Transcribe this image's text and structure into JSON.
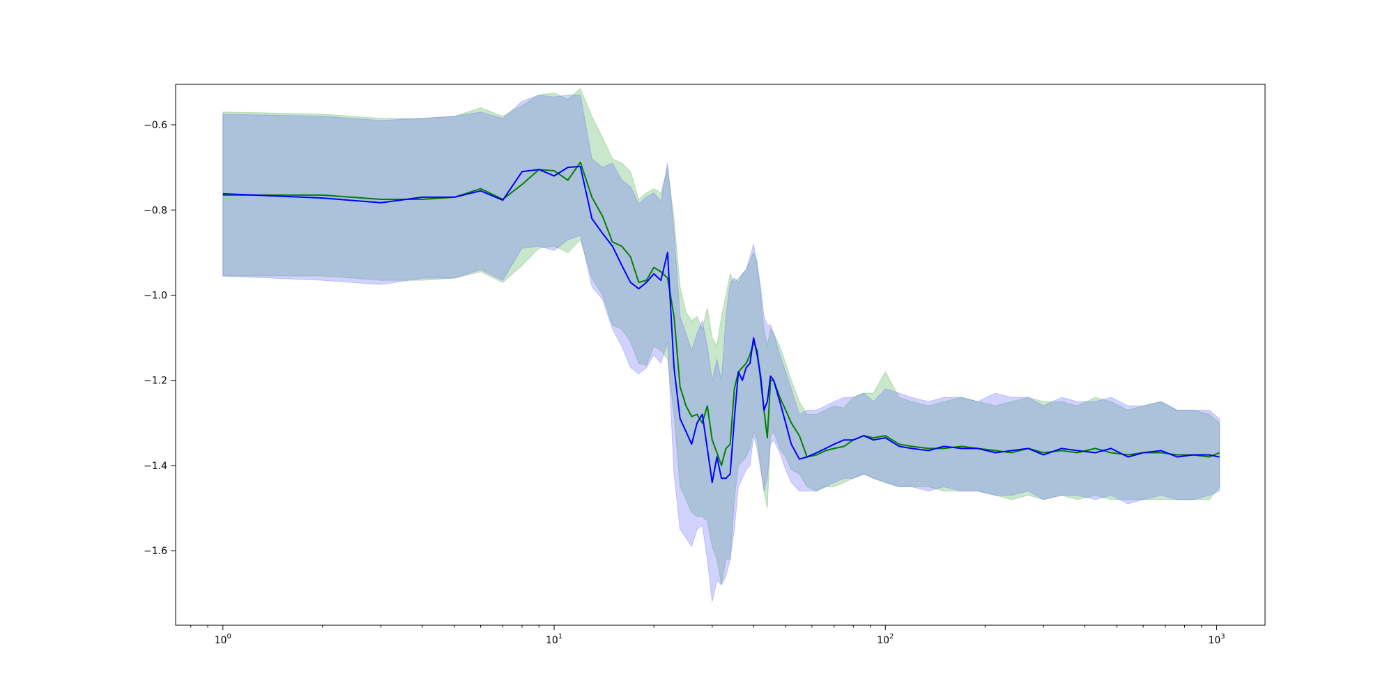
{
  "chart_data": {
    "type": "line",
    "title": "",
    "xlabel": "",
    "ylabel": "",
    "x_scale": "log",
    "xlim": [
      0.72,
      1400
    ],
    "ylim": [
      -1.775,
      -0.505
    ],
    "grid": false,
    "legend": "none",
    "x_ticks": [
      {
        "value": 1,
        "base": "10",
        "exp": "0"
      },
      {
        "value": 10,
        "base": "10",
        "exp": "1"
      },
      {
        "value": 100,
        "base": "10",
        "exp": "2"
      },
      {
        "value": 1000,
        "base": "10",
        "exp": "3"
      }
    ],
    "y_ticks": [
      {
        "value": -0.6,
        "label": "−0.6"
      },
      {
        "value": -0.8,
        "label": "−0.8"
      },
      {
        "value": -1.0,
        "label": "−1.0"
      },
      {
        "value": -1.2,
        "label": "−1.2"
      },
      {
        "value": -1.4,
        "label": "−1.4"
      },
      {
        "value": -1.6,
        "label": "−1.6"
      }
    ],
    "series": [
      {
        "color": "#008000",
        "band_color": "#4caf50",
        "x": [
          1,
          2,
          3,
          4,
          5,
          6,
          7,
          8,
          9,
          10,
          11,
          12,
          13,
          14,
          15,
          16,
          17,
          18,
          19,
          20,
          21,
          22,
          23,
          24,
          25,
          26,
          27,
          28,
          29,
          30,
          31,
          32,
          33,
          34,
          35,
          36,
          37,
          38,
          39,
          40,
          41,
          42,
          43,
          44,
          45,
          46,
          48,
          50,
          52,
          55,
          58,
          62,
          66,
          70,
          75,
          80,
          86,
          92,
          100,
          110,
          120,
          135,
          150,
          170,
          190,
          215,
          240,
          270,
          300,
          340,
          380,
          430,
          480,
          540,
          600,
          680,
          760,
          850,
          950,
          1020
        ],
        "y": [
          -0.765,
          -0.765,
          -0.775,
          -0.775,
          -0.77,
          -0.75,
          -0.775,
          -0.74,
          -0.705,
          -0.708,
          -0.73,
          -0.688,
          -0.77,
          -0.815,
          -0.875,
          -0.885,
          -0.91,
          -0.97,
          -0.965,
          -0.935,
          -0.945,
          -0.96,
          -1.05,
          -1.215,
          -1.26,
          -1.285,
          -1.28,
          -1.3,
          -1.26,
          -1.34,
          -1.37,
          -1.4,
          -1.36,
          -1.35,
          -1.22,
          -1.18,
          -1.17,
          -1.16,
          -1.14,
          -1.11,
          -1.13,
          -1.2,
          -1.27,
          -1.335,
          -1.2,
          -1.2,
          -1.24,
          -1.27,
          -1.3,
          -1.33,
          -1.38,
          -1.375,
          -1.365,
          -1.36,
          -1.355,
          -1.34,
          -1.33,
          -1.335,
          -1.33,
          -1.35,
          -1.355,
          -1.36,
          -1.36,
          -1.355,
          -1.36,
          -1.365,
          -1.37,
          -1.36,
          -1.37,
          -1.365,
          -1.37,
          -1.36,
          -1.37,
          -1.375,
          -1.37,
          -1.37,
          -1.375,
          -1.375,
          -1.38,
          -1.37
        ],
        "upper": [
          -0.57,
          -0.575,
          -0.585,
          -0.585,
          -0.58,
          -0.56,
          -0.58,
          -0.555,
          -0.53,
          -0.525,
          -0.54,
          -0.515,
          -0.58,
          -0.63,
          -0.68,
          -0.69,
          -0.71,
          -0.775,
          -0.76,
          -0.75,
          -0.76,
          -0.7,
          -0.82,
          -0.98,
          -1.04,
          -1.06,
          -1.05,
          -1.08,
          -1.03,
          -1.1,
          -1.12,
          -1.05,
          -1.0,
          -0.95,
          -0.97,
          -0.96,
          -0.95,
          -0.94,
          -0.92,
          -0.9,
          -0.92,
          -1.0,
          -1.08,
          -1.12,
          -1.08,
          -1.09,
          -1.12,
          -1.16,
          -1.2,
          -1.25,
          -1.28,
          -1.28,
          -1.27,
          -1.26,
          -1.265,
          -1.24,
          -1.23,
          -1.23,
          -1.18,
          -1.24,
          -1.25,
          -1.26,
          -1.25,
          -1.24,
          -1.25,
          -1.26,
          -1.25,
          -1.24,
          -1.25,
          -1.25,
          -1.26,
          -1.24,
          -1.25,
          -1.27,
          -1.26,
          -1.25,
          -1.27,
          -1.27,
          -1.28,
          -1.3
        ],
        "lower": [
          -0.955,
          -0.955,
          -0.965,
          -0.965,
          -0.96,
          -0.945,
          -0.97,
          -0.93,
          -0.89,
          -0.885,
          -0.9,
          -0.87,
          -0.96,
          -1.0,
          -1.07,
          -1.08,
          -1.11,
          -1.16,
          -1.165,
          -1.12,
          -1.13,
          -1.15,
          -1.28,
          -1.45,
          -1.48,
          -1.51,
          -1.52,
          -1.52,
          -1.53,
          -1.59,
          -1.62,
          -1.68,
          -1.62,
          -1.62,
          -1.48,
          -1.4,
          -1.39,
          -1.38,
          -1.36,
          -1.32,
          -1.34,
          -1.4,
          -1.46,
          -1.5,
          -1.33,
          -1.32,
          -1.36,
          -1.38,
          -1.41,
          -1.42,
          -1.45,
          -1.46,
          -1.45,
          -1.45,
          -1.44,
          -1.43,
          -1.42,
          -1.43,
          -1.44,
          -1.45,
          -1.45,
          -1.45,
          -1.46,
          -1.46,
          -1.46,
          -1.47,
          -1.48,
          -1.47,
          -1.48,
          -1.47,
          -1.48,
          -1.47,
          -1.48,
          -1.48,
          -1.48,
          -1.48,
          -1.48,
          -1.48,
          -1.48,
          -1.45
        ]
      },
      {
        "color": "#0000ff",
        "band_color": "#6a6aff",
        "x": [
          1,
          2,
          3,
          4,
          5,
          6,
          7,
          8,
          9,
          10,
          11,
          12,
          13,
          14,
          15,
          16,
          17,
          18,
          19,
          20,
          21,
          22,
          23,
          24,
          25,
          26,
          27,
          28,
          29,
          30,
          31,
          32,
          33,
          34,
          35,
          36,
          37,
          38,
          39,
          40,
          41,
          42,
          43,
          44,
          45,
          46,
          48,
          50,
          52,
          55,
          58,
          62,
          66,
          70,
          75,
          80,
          86,
          92,
          100,
          110,
          120,
          135,
          150,
          170,
          190,
          215,
          240,
          270,
          300,
          340,
          380,
          430,
          480,
          540,
          600,
          680,
          760,
          850,
          950,
          1020
        ],
        "y": [
          -0.762,
          -0.772,
          -0.783,
          -0.77,
          -0.77,
          -0.755,
          -0.777,
          -0.71,
          -0.705,
          -0.72,
          -0.7,
          -0.698,
          -0.82,
          -0.855,
          -0.885,
          -0.93,
          -0.97,
          -0.985,
          -0.97,
          -0.95,
          -0.965,
          -0.9,
          -1.17,
          -1.29,
          -1.32,
          -1.35,
          -1.3,
          -1.28,
          -1.36,
          -1.44,
          -1.38,
          -1.43,
          -1.43,
          -1.42,
          -1.29,
          -1.18,
          -1.2,
          -1.17,
          -1.16,
          -1.1,
          -1.14,
          -1.19,
          -1.27,
          -1.25,
          -1.19,
          -1.2,
          -1.25,
          -1.3,
          -1.35,
          -1.385,
          -1.38,
          -1.37,
          -1.36,
          -1.35,
          -1.34,
          -1.34,
          -1.33,
          -1.34,
          -1.335,
          -1.355,
          -1.36,
          -1.365,
          -1.355,
          -1.36,
          -1.36,
          -1.37,
          -1.365,
          -1.36,
          -1.375,
          -1.36,
          -1.365,
          -1.37,
          -1.36,
          -1.38,
          -1.37,
          -1.365,
          -1.38,
          -1.375,
          -1.375,
          -1.38
        ],
        "upper": [
          -0.575,
          -0.58,
          -0.59,
          -0.585,
          -0.58,
          -0.57,
          -0.585,
          -0.545,
          -0.53,
          -0.535,
          -0.53,
          -0.53,
          -0.68,
          -0.7,
          -0.69,
          -0.73,
          -0.745,
          -0.785,
          -0.77,
          -0.76,
          -0.78,
          -0.69,
          -0.85,
          -1.05,
          -1.09,
          -1.13,
          -1.09,
          -1.06,
          -1.12,
          -1.2,
          -1.15,
          -1.2,
          -1.05,
          -0.97,
          -0.96,
          -0.97,
          -0.95,
          -0.94,
          -0.91,
          -0.88,
          -0.93,
          -0.98,
          -1.05,
          -1.07,
          -1.07,
          -1.09,
          -1.14,
          -1.18,
          -1.22,
          -1.28,
          -1.27,
          -1.27,
          -1.26,
          -1.25,
          -1.24,
          -1.24,
          -1.23,
          -1.25,
          -1.22,
          -1.23,
          -1.24,
          -1.25,
          -1.24,
          -1.24,
          -1.25,
          -1.23,
          -1.24,
          -1.24,
          -1.26,
          -1.24,
          -1.25,
          -1.25,
          -1.24,
          -1.26,
          -1.26,
          -1.25,
          -1.27,
          -1.27,
          -1.27,
          -1.29
        ],
        "lower": [
          -0.955,
          -0.965,
          -0.975,
          -0.96,
          -0.96,
          -0.94,
          -0.965,
          -0.89,
          -0.885,
          -0.895,
          -0.87,
          -0.86,
          -0.98,
          -1.01,
          -1.08,
          -1.12,
          -1.17,
          -1.185,
          -1.17,
          -1.14,
          -1.16,
          -1.11,
          -1.42,
          -1.55,
          -1.57,
          -1.59,
          -1.55,
          -1.54,
          -1.62,
          -1.72,
          -1.67,
          -1.68,
          -1.66,
          -1.62,
          -1.55,
          -1.45,
          -1.43,
          -1.41,
          -1.4,
          -1.33,
          -1.36,
          -1.41,
          -1.46,
          -1.43,
          -1.35,
          -1.34,
          -1.37,
          -1.41,
          -1.44,
          -1.46,
          -1.46,
          -1.46,
          -1.45,
          -1.44,
          -1.43,
          -1.43,
          -1.42,
          -1.43,
          -1.44,
          -1.45,
          -1.45,
          -1.46,
          -1.45,
          -1.46,
          -1.46,
          -1.47,
          -1.47,
          -1.46,
          -1.48,
          -1.47,
          -1.47,
          -1.48,
          -1.47,
          -1.49,
          -1.48,
          -1.47,
          -1.48,
          -1.48,
          -1.47,
          -1.46
        ]
      }
    ]
  }
}
